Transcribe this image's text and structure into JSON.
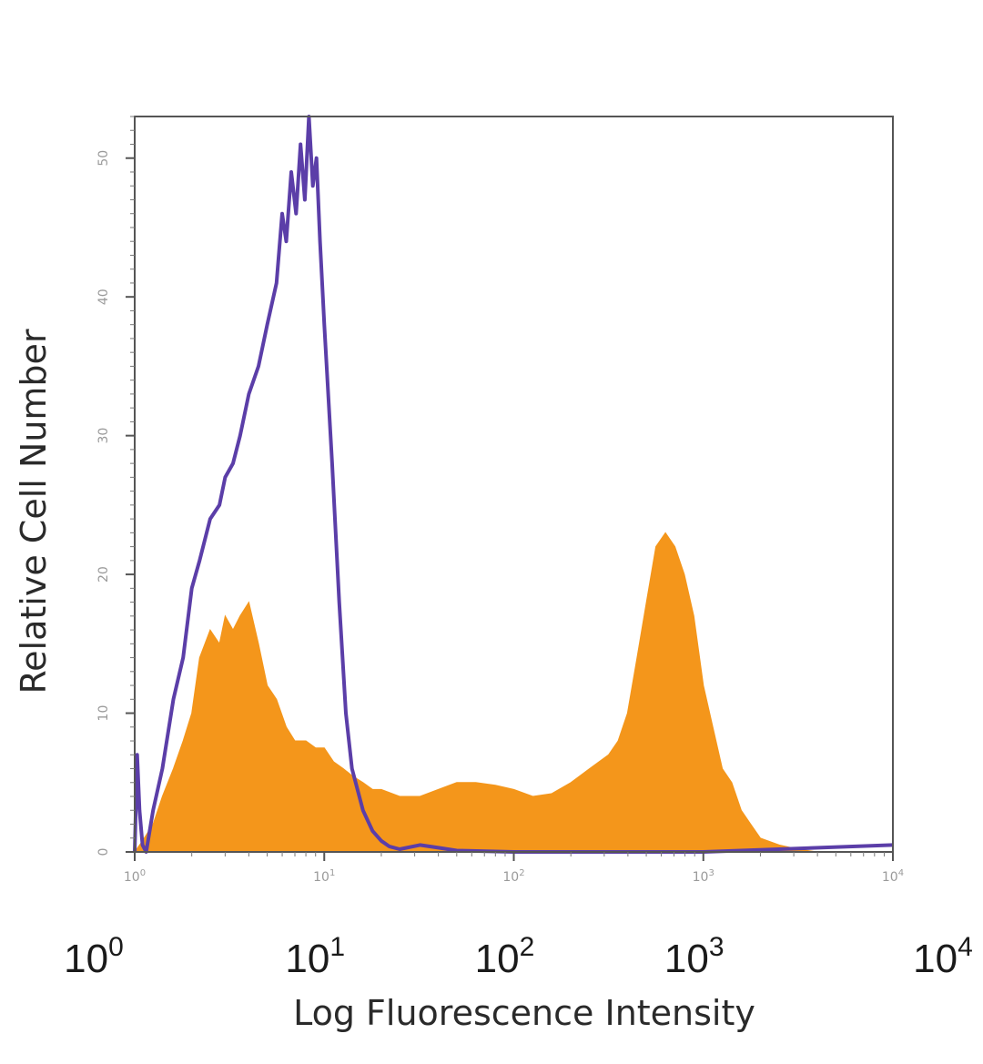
{
  "chart_data": {
    "type": "area",
    "xlabel": "Log Fluorescence Intensity",
    "ylabel": "Relative Cell Number",
    "x_scale": "log",
    "xlim": [
      1,
      10000
    ],
    "ylim": [
      0,
      53
    ],
    "x_ticks": [
      {
        "value": 1,
        "base": "10",
        "exp": "0"
      },
      {
        "value": 10,
        "base": "10",
        "exp": "1"
      },
      {
        "value": 100,
        "base": "10",
        "exp": "2"
      },
      {
        "value": 1000,
        "base": "10",
        "exp": "3"
      },
      {
        "value": 10000,
        "base": "10",
        "exp": "4"
      }
    ],
    "y_ticks": [
      "0",
      "10",
      "20",
      "30",
      "40",
      "50"
    ],
    "grid": false,
    "colors": {
      "stained": "#f4961b",
      "control": "#5b3ea8",
      "frame": "#555555"
    },
    "series": [
      {
        "style": "filled",
        "x": [
          1.0,
          1.1,
          1.25,
          1.4,
          1.6,
          1.8,
          2.0,
          2.2,
          2.5,
          2.8,
          3.0,
          3.3,
          3.6,
          4.0,
          4.5,
          5.0,
          5.6,
          6.3,
          7.0,
          8.0,
          9.0,
          10,
          11.2,
          12.6,
          14,
          16,
          18,
          20,
          25,
          32,
          40,
          50,
          63,
          80,
          100,
          126,
          158,
          200,
          251,
          316,
          355,
          398,
          447,
          501,
          562,
          631,
          708,
          794,
          891,
          1000,
          1122,
          1259,
          1413,
          1585,
          1778,
          2000,
          2512,
          3162,
          4000,
          5000,
          10000
        ],
        "values": [
          0,
          0.8,
          2,
          4,
          6,
          8,
          10,
          14,
          16,
          15,
          17,
          16,
          17,
          18,
          15,
          12,
          11,
          9,
          8,
          8,
          7.5,
          7.5,
          6.5,
          6,
          5.5,
          5,
          4.5,
          4.5,
          4,
          4,
          4.5,
          5,
          5,
          4.8,
          4.5,
          4,
          4.2,
          5,
          6,
          7,
          8,
          10,
          14,
          18,
          22,
          23,
          22,
          20,
          17,
          12,
          9,
          6,
          5,
          3,
          2,
          1,
          0.5,
          0.2,
          0,
          0,
          0
        ]
      },
      {
        "style": "line",
        "x": [
          1.0,
          1.03,
          1.06,
          1.1,
          1.15,
          1.25,
          1.4,
          1.6,
          1.8,
          2.0,
          2.2,
          2.5,
          2.8,
          3.0,
          3.3,
          3.6,
          4.0,
          4.5,
          5.0,
          5.6,
          6.0,
          6.3,
          6.7,
          7.1,
          7.5,
          7.9,
          8.3,
          8.7,
          9.1,
          9.5,
          10,
          11,
          12,
          13,
          14,
          16,
          18,
          20,
          22,
          25,
          32,
          40,
          50,
          100,
          1000,
          10000
        ],
        "values": [
          0,
          7,
          3,
          0.5,
          0,
          3,
          6,
          11,
          14,
          19,
          21,
          24,
          25,
          27,
          28,
          30,
          33,
          35,
          38,
          41,
          46,
          44,
          49,
          46,
          51,
          47,
          53,
          48,
          50,
          44,
          38,
          28,
          18,
          10,
          6,
          3,
          1.5,
          0.8,
          0.4,
          0.2,
          0.5,
          0.3,
          0.1,
          0,
          0,
          0.5
        ]
      }
    ]
  }
}
